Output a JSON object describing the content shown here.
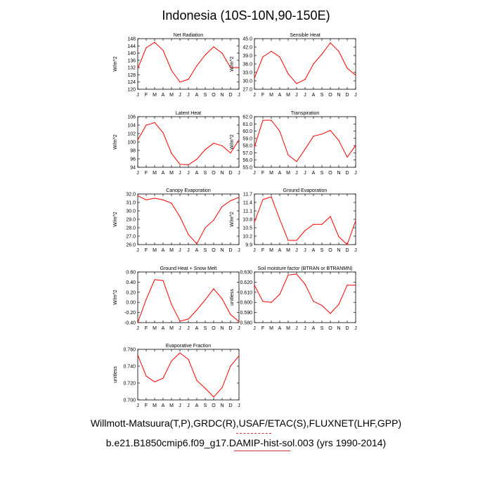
{
  "title": "Indonesia (10S-10N,90-150E)",
  "footer": {
    "line1": "Willmott-Matsuura(T,P),GRDC(R),USAF/ETAC(S),FLUXNET(LHF,GPP)",
    "line2": "b.e21.B1850cmip6.f09_g17.DAMIP-hist-sol.003 (yrs 1990-2014)"
  },
  "colors": {
    "line": "#ff0000",
    "axis": "#000000",
    "background": "#ffffff"
  },
  "months": [
    "J",
    "F",
    "M",
    "A",
    "M",
    "J",
    "J",
    "A",
    "S",
    "O",
    "N",
    "D",
    "J"
  ],
  "chart_data": [
    {
      "type": "line",
      "title": "Net Radiation",
      "ylabel": "W/m^2",
      "ylim": [
        120,
        148
      ],
      "yticks": [
        "120",
        "124",
        "128",
        "132",
        "136",
        "140",
        "144",
        "148"
      ],
      "values": [
        131.5,
        143,
        146,
        141.5,
        130.5,
        124,
        125.5,
        133,
        139,
        143.5,
        140,
        132,
        132
      ]
    },
    {
      "type": "line",
      "title": "Sensible Heat",
      "ylabel": "W/m^2",
      "ylim": [
        27,
        45
      ],
      "yticks": [
        "27.0",
        "30.0",
        "33.0",
        "36.0",
        "39.0",
        "42.0",
        "45.0"
      ],
      "values": [
        31,
        38.5,
        40.5,
        38.5,
        32.5,
        29,
        30.5,
        36,
        39.5,
        43.5,
        40.5,
        34.5,
        32
      ]
    },
    {
      "type": "line",
      "title": "Latent Heat",
      "ylabel": "W/m^2",
      "ylim": [
        94,
        106
      ],
      "yticks": [
        "94",
        "96",
        "98",
        "100",
        "102",
        "104",
        "106"
      ],
      "values": [
        100.5,
        104,
        104.6,
        102.2,
        97.3,
        94.7,
        94.6,
        95.9,
        98.2,
        99.7,
        99.1,
        97.4,
        100.5
      ]
    },
    {
      "type": "line",
      "title": "Transpiration",
      "ylabel": "W/m^2",
      "ylim": [
        55,
        62
      ],
      "yticks": [
        "55.0",
        "56.0",
        "57.0",
        "58.0",
        "59.0",
        "60.0",
        "61.0",
        "62.0"
      ],
      "values": [
        57.8,
        61.5,
        61.5,
        60,
        56.7,
        55.8,
        57.5,
        59.3,
        59.6,
        60.1,
        58.7,
        56.4,
        58
      ]
    },
    {
      "type": "line",
      "title": "Canopy Evaporation",
      "ylabel": "W/m^2",
      "ylim": [
        26,
        32
      ],
      "yticks": [
        "26.0",
        "27.0",
        "28.0",
        "29.0",
        "30.0",
        "31.0",
        "32.0"
      ],
      "values": [
        31.8,
        31.3,
        31.5,
        31.3,
        30.9,
        29.3,
        27.2,
        26.1,
        28,
        28.9,
        30.5,
        31.2,
        31.6
      ]
    },
    {
      "type": "line",
      "title": "Ground Evaporation",
      "ylabel": "W/m^2",
      "ylim": [
        9.9,
        11.7
      ],
      "yticks": [
        "9.9",
        "10.2",
        "10.5",
        "10.8",
        "11.1",
        "11.4",
        "11.7"
      ],
      "values": [
        10.7,
        11.5,
        11.6,
        10.8,
        10.05,
        10.05,
        10.4,
        10.62,
        10.62,
        10.9,
        10.18,
        9.9,
        10.75
      ]
    },
    {
      "type": "line",
      "title": "Ground Heat + Snow Melt",
      "ylabel": "W/m^2",
      "ylim": [
        -0.4,
        0.6
      ],
      "yticks": [
        "-0.40",
        "-0.20",
        "0.00",
        "0.20",
        "0.40",
        "0.60"
      ],
      "values": [
        -0.4,
        0.06,
        0.45,
        0.43,
        -0.04,
        -0.37,
        -0.33,
        -0.15,
        0.05,
        0.27,
        0.07,
        -0.24,
        -0.38
      ]
    },
    {
      "type": "line",
      "title": "Soil moisture factor (BTRAN or BTRANMN)",
      "ylabel": "unitless",
      "ylim": [
        0.58,
        0.63
      ],
      "yticks": [
        "0.580",
        "0.590",
        "0.600",
        "0.610",
        "0.620",
        "0.630"
      ],
      "values": [
        0.617,
        0.601,
        0.6,
        0.608,
        0.627,
        0.628,
        0.618,
        0.601,
        0.597,
        0.589,
        0.598,
        0.617,
        0.617
      ]
    },
    {
      "type": "line",
      "title": "Evaporative Fraction",
      "ylabel": "unitless",
      "ylim": [
        0.7,
        0.77
      ],
      "yticks": [
        "0.700",
        "0.720",
        "0.740",
        "0.760"
      ],
      "values": [
        0.762,
        0.733,
        0.725,
        0.73,
        0.754,
        0.765,
        0.756,
        0.727,
        0.716,
        0.704,
        0.717,
        0.747,
        0.761
      ]
    }
  ]
}
